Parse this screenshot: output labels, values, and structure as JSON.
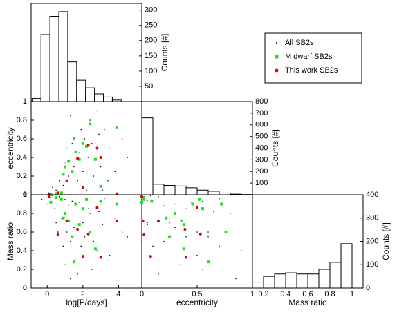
{
  "chart_data": {
    "type": "corner",
    "logP_label": "log[P/days]",
    "ecc_label": "eccentricity",
    "q_label": "Mass ratio",
    "logP_lim": [
      -0.9,
      5.3
    ],
    "logP_ticks": [
      0,
      2,
      4
    ],
    "ecc_lim": [
      0,
      1
    ],
    "ecc_xticks": [
      0,
      0.5,
      1
    ],
    "ecc_yticks": [
      0,
      0.2,
      0.4,
      0.6,
      0.8,
      1
    ],
    "q_lim": [
      0,
      1
    ],
    "q_yticks": [
      0,
      0.2,
      0.4,
      0.6,
      0.8,
      1
    ],
    "series": [
      {
        "name": "All SB2s",
        "color": "#000000",
        "logP": [
          -0.3,
          0.0,
          0.2,
          0.4,
          0.6,
          0.8,
          1.0,
          1.3,
          1.6,
          0.1,
          0.5,
          0.9,
          1.2,
          1.5,
          1.8,
          2.1,
          2.4,
          2.8,
          3.2,
          3.5,
          4.2,
          1.0,
          1.4,
          1.7,
          2.0,
          2.3,
          2.6,
          3.0,
          3.4,
          3.8,
          0.7,
          1.1,
          1.9,
          2.5,
          2.9,
          4.5,
          1.3,
          2.2,
          3.1,
          0.3
        ],
        "ecc": [
          0,
          0,
          0,
          0,
          0,
          0,
          0,
          0,
          0,
          0.02,
          0.05,
          0.1,
          0.2,
          0.3,
          0.45,
          0.6,
          0.8,
          0.9,
          0.7,
          0.5,
          0.6,
          0.35,
          0.55,
          0.15,
          0.25,
          0.4,
          0.2,
          0.3,
          0.15,
          0.25,
          0.15,
          0.5,
          0.7,
          0.55,
          0.65,
          0.4,
          0.85,
          0.05,
          0.05,
          0.08
        ],
        "q": [
          0.95,
          0.9,
          0.97,
          0.85,
          0.6,
          0.75,
          0.95,
          0.5,
          0.3,
          0.98,
          0.7,
          0.45,
          0.88,
          0.65,
          0.92,
          0.55,
          0.8,
          0.4,
          0.96,
          0.35,
          0.6,
          0.25,
          0.93,
          0.15,
          0.7,
          0.85,
          0.5,
          0.9,
          0.3,
          0.75,
          0.98,
          0.6,
          0.45,
          0.2,
          0.82,
          0.55,
          0.1,
          0.94,
          0.68,
          0.99
        ]
      },
      {
        "name": "M dwarf SB2s",
        "color": "#22dd22",
        "logP": [
          0.5,
          0.8,
          0.2,
          1.0,
          1.2,
          1.4,
          1.6,
          1.8,
          2.0,
          2.2,
          2.4,
          2.7,
          3.0,
          3.9,
          1.5,
          0.9
        ],
        "ecc": [
          0.01,
          0.02,
          0,
          0.3,
          0.36,
          0.25,
          0.46,
          0.38,
          0.55,
          0.52,
          0.76,
          0.38,
          0.09,
          0.72,
          0.6,
          0.22
        ],
        "q": [
          0.97,
          0.95,
          0.92,
          0.8,
          0.72,
          0.55,
          0.9,
          0.68,
          0.85,
          0.95,
          0.6,
          0.42,
          0.93,
          0.9,
          0.28,
          0.75
        ]
      },
      {
        "name": "This work SB2s",
        "color": "#dd0000",
        "logP": [
          0.1,
          0.6,
          1.1,
          1.7,
          2.0,
          2.3,
          2.8,
          3.0,
          3.9
        ],
        "ecc": [
          0,
          0.02,
          0.15,
          0.39,
          0.08,
          0.53,
          0.5,
          0.4,
          0.01
        ],
        "q": [
          0.98,
          0.57,
          0.72,
          0.63,
          0.34,
          0.58,
          0.86,
          0.33,
          0.72
        ]
      }
    ],
    "hist_logP": {
      "ylabel": "Counts [#]",
      "bins": [
        -0.85,
        -0.35,
        0.15,
        0.65,
        1.15,
        1.65,
        2.15,
        2.65,
        3.15,
        3.65,
        4.15,
        4.65
      ],
      "counts": [
        10,
        220,
        280,
        295,
        130,
        70,
        45,
        25,
        15,
        5,
        0
      ],
      "ylim": [
        0,
        322
      ],
      "yticks": [
        50,
        100,
        150,
        200,
        250,
        300
      ]
    },
    "hist_ecc": {
      "ylabel": "Counts [#]",
      "bins": [
        0,
        0.1,
        0.2,
        0.3,
        0.4,
        0.5,
        0.6,
        0.7,
        0.8,
        0.9,
        1
      ],
      "counts": [
        660,
        90,
        80,
        75,
        60,
        40,
        30,
        15,
        5,
        2
      ],
      "ylim": [
        0,
        800
      ],
      "yticks": [
        100,
        200,
        300,
        400,
        500,
        600,
        700,
        800
      ]
    },
    "hist_q": {
      "ylabel": "Counts [#]",
      "bins": [
        0.1,
        0.2,
        0.3,
        0.4,
        0.5,
        0.6,
        0.7,
        0.8,
        0.9,
        1.0
      ],
      "counts": [
        25,
        50,
        60,
        65,
        60,
        60,
        80,
        110,
        190,
        400
      ],
      "xlim": [
        0.1,
        1.1
      ],
      "xticks": [
        0.2,
        0.4,
        0.6,
        0.8,
        1
      ],
      "ylim": [
        0,
        400
      ],
      "yticks": [
        0,
        100,
        200,
        300,
        400
      ]
    }
  }
}
